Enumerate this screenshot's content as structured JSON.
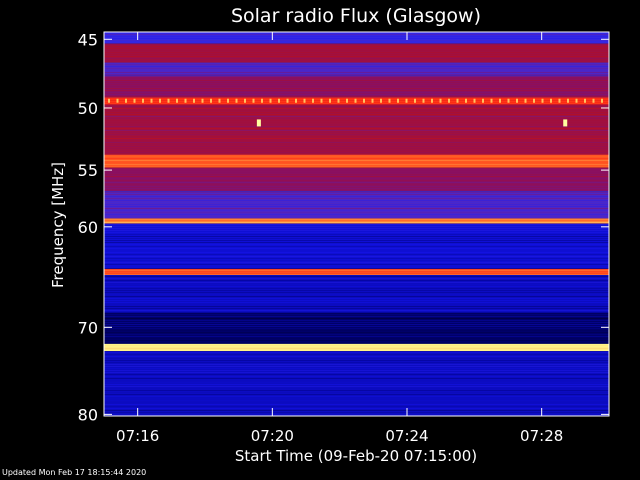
{
  "chart_data": {
    "type": "heatmap",
    "title": "Solar radio Flux (Glasgow)",
    "ylabel": "Frequency [MHz]",
    "xlabel": "Start Time (09-Feb-20 07:15:00)",
    "x_tick_labels": [
      "07:16",
      "07:20",
      "07:24",
      "07:28"
    ],
    "x_tick_minutes": [
      1,
      5,
      9,
      13
    ],
    "xlim_minutes": [
      0,
      15
    ],
    "y_tick_labels": [
      "45",
      "50",
      "55",
      "60",
      "70",
      "80"
    ],
    "y_tick_values": [
      45,
      50,
      55,
      60,
      70,
      80
    ],
    "ylim": [
      44.5,
      80.2
    ],
    "y_scale": "log",
    "colormap": [
      "#000020",
      "#00007a",
      "#1414f0",
      "#3c2ce0",
      "#8a1060",
      "#c01010",
      "#ff2010",
      "#ff8030",
      "#ffff90"
    ],
    "bands": [
      {
        "from": 44.5,
        "to": 45.3,
        "level": 0.35
      },
      {
        "from": 45.3,
        "to": 46.6,
        "level": 0.55
      },
      {
        "from": 46.6,
        "to": 47.6,
        "level": 0.4
      },
      {
        "from": 47.6,
        "to": 49.2,
        "level": 0.5
      },
      {
        "from": 49.2,
        "to": 49.7,
        "level": 0.78
      },
      {
        "from": 49.7,
        "to": 53.7,
        "level": 0.55
      },
      {
        "from": 53.7,
        "to": 54.8,
        "level": 0.82
      },
      {
        "from": 54.8,
        "to": 56.8,
        "level": 0.5
      },
      {
        "from": 56.8,
        "to": 59.2,
        "level": 0.4
      },
      {
        "from": 59.2,
        "to": 59.7,
        "level": 0.88
      },
      {
        "from": 59.7,
        "to": 64.0,
        "level": 0.22
      },
      {
        "from": 64.0,
        "to": 64.6,
        "level": 0.8
      },
      {
        "from": 64.6,
        "to": 68.5,
        "level": 0.2
      },
      {
        "from": 68.5,
        "to": 71.8,
        "level": 0.1
      },
      {
        "from": 71.8,
        "to": 72.6,
        "level": 0.98
      },
      {
        "from": 72.6,
        "to": 80.2,
        "level": 0.2
      }
    ],
    "spikes": [
      {
        "time_min": 4.6,
        "freq": 51.2
      },
      {
        "time_min": 13.7,
        "freq": 51.2
      }
    ],
    "grid": false,
    "legend": "none"
  },
  "footer": "Updated Mon Feb 17 18:15:44 2020"
}
